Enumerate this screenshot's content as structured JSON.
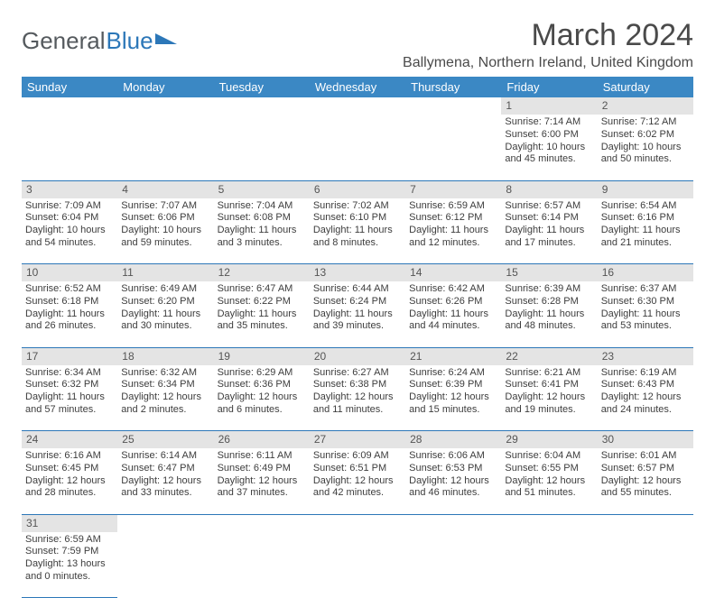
{
  "brand": {
    "part1": "General",
    "part2": "Blue"
  },
  "title": "March 2024",
  "location": "Ballymena, Northern Ireland, United Kingdom",
  "colors": {
    "header_bg": "#3b88c4",
    "border": "#2c77b8",
    "daynum_bg": "#e4e4e4",
    "text": "#3d3d3d",
    "title_text": "#4a4a4a"
  },
  "day_headers": [
    "Sunday",
    "Monday",
    "Tuesday",
    "Wednesday",
    "Thursday",
    "Friday",
    "Saturday"
  ],
  "weeks": [
    {
      "nums": [
        "",
        "",
        "",
        "",
        "",
        "1",
        "2"
      ],
      "cells": [
        null,
        null,
        null,
        null,
        null,
        {
          "sunrise": "7:14 AM",
          "sunset": "6:00 PM",
          "daylight": "10 hours and 45 minutes."
        },
        {
          "sunrise": "7:12 AM",
          "sunset": "6:02 PM",
          "daylight": "10 hours and 50 minutes."
        }
      ]
    },
    {
      "nums": [
        "3",
        "4",
        "5",
        "6",
        "7",
        "8",
        "9"
      ],
      "cells": [
        {
          "sunrise": "7:09 AM",
          "sunset": "6:04 PM",
          "daylight": "10 hours and 54 minutes."
        },
        {
          "sunrise": "7:07 AM",
          "sunset": "6:06 PM",
          "daylight": "10 hours and 59 minutes."
        },
        {
          "sunrise": "7:04 AM",
          "sunset": "6:08 PM",
          "daylight": "11 hours and 3 minutes."
        },
        {
          "sunrise": "7:02 AM",
          "sunset": "6:10 PM",
          "daylight": "11 hours and 8 minutes."
        },
        {
          "sunrise": "6:59 AM",
          "sunset": "6:12 PM",
          "daylight": "11 hours and 12 minutes."
        },
        {
          "sunrise": "6:57 AM",
          "sunset": "6:14 PM",
          "daylight": "11 hours and 17 minutes."
        },
        {
          "sunrise": "6:54 AM",
          "sunset": "6:16 PM",
          "daylight": "11 hours and 21 minutes."
        }
      ]
    },
    {
      "nums": [
        "10",
        "11",
        "12",
        "13",
        "14",
        "15",
        "16"
      ],
      "cells": [
        {
          "sunrise": "6:52 AM",
          "sunset": "6:18 PM",
          "daylight": "11 hours and 26 minutes."
        },
        {
          "sunrise": "6:49 AM",
          "sunset": "6:20 PM",
          "daylight": "11 hours and 30 minutes."
        },
        {
          "sunrise": "6:47 AM",
          "sunset": "6:22 PM",
          "daylight": "11 hours and 35 minutes."
        },
        {
          "sunrise": "6:44 AM",
          "sunset": "6:24 PM",
          "daylight": "11 hours and 39 minutes."
        },
        {
          "sunrise": "6:42 AM",
          "sunset": "6:26 PM",
          "daylight": "11 hours and 44 minutes."
        },
        {
          "sunrise": "6:39 AM",
          "sunset": "6:28 PM",
          "daylight": "11 hours and 48 minutes."
        },
        {
          "sunrise": "6:37 AM",
          "sunset": "6:30 PM",
          "daylight": "11 hours and 53 minutes."
        }
      ]
    },
    {
      "nums": [
        "17",
        "18",
        "19",
        "20",
        "21",
        "22",
        "23"
      ],
      "cells": [
        {
          "sunrise": "6:34 AM",
          "sunset": "6:32 PM",
          "daylight": "11 hours and 57 minutes."
        },
        {
          "sunrise": "6:32 AM",
          "sunset": "6:34 PM",
          "daylight": "12 hours and 2 minutes."
        },
        {
          "sunrise": "6:29 AM",
          "sunset": "6:36 PM",
          "daylight": "12 hours and 6 minutes."
        },
        {
          "sunrise": "6:27 AM",
          "sunset": "6:38 PM",
          "daylight": "12 hours and 11 minutes."
        },
        {
          "sunrise": "6:24 AM",
          "sunset": "6:39 PM",
          "daylight": "12 hours and 15 minutes."
        },
        {
          "sunrise": "6:21 AM",
          "sunset": "6:41 PM",
          "daylight": "12 hours and 19 minutes."
        },
        {
          "sunrise": "6:19 AM",
          "sunset": "6:43 PM",
          "daylight": "12 hours and 24 minutes."
        }
      ]
    },
    {
      "nums": [
        "24",
        "25",
        "26",
        "27",
        "28",
        "29",
        "30"
      ],
      "cells": [
        {
          "sunrise": "6:16 AM",
          "sunset": "6:45 PM",
          "daylight": "12 hours and 28 minutes."
        },
        {
          "sunrise": "6:14 AM",
          "sunset": "6:47 PM",
          "daylight": "12 hours and 33 minutes."
        },
        {
          "sunrise": "6:11 AM",
          "sunset": "6:49 PM",
          "daylight": "12 hours and 37 minutes."
        },
        {
          "sunrise": "6:09 AM",
          "sunset": "6:51 PM",
          "daylight": "12 hours and 42 minutes."
        },
        {
          "sunrise": "6:06 AM",
          "sunset": "6:53 PM",
          "daylight": "12 hours and 46 minutes."
        },
        {
          "sunrise": "6:04 AM",
          "sunset": "6:55 PM",
          "daylight": "12 hours and 51 minutes."
        },
        {
          "sunrise": "6:01 AM",
          "sunset": "6:57 PM",
          "daylight": "12 hours and 55 minutes."
        }
      ]
    },
    {
      "nums": [
        "31",
        "",
        "",
        "",
        "",
        "",
        ""
      ],
      "cells": [
        {
          "sunrise": "6:59 AM",
          "sunset": "7:59 PM",
          "daylight": "13 hours and 0 minutes."
        },
        null,
        null,
        null,
        null,
        null,
        null
      ]
    }
  ],
  "labels": {
    "sunrise": "Sunrise: ",
    "sunset": "Sunset: ",
    "daylight": "Daylight: "
  }
}
